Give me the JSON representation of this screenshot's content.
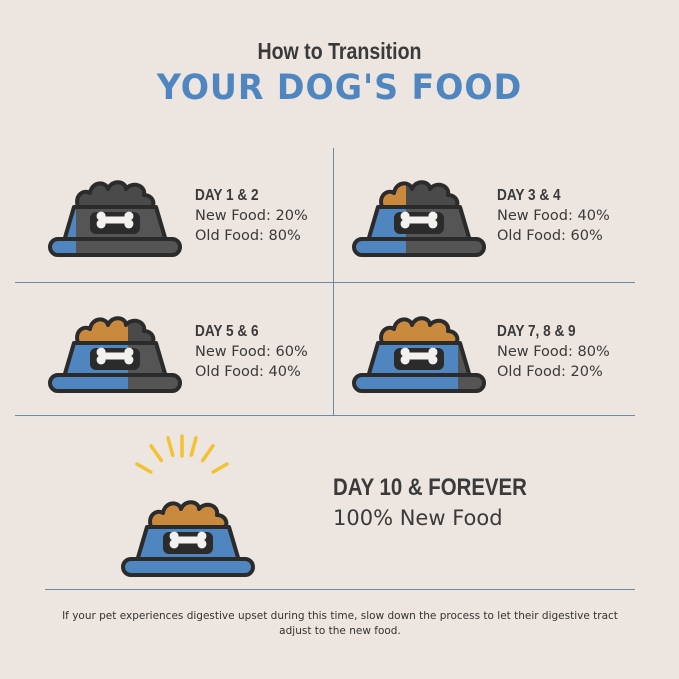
{
  "header": {
    "title_small": "How to Transition",
    "title_large": "YOUR DOG'S FOOD"
  },
  "colors": {
    "background": "#ece5e0",
    "new_food_blue": "#4f86c0",
    "old_food_gray": "#555555",
    "outline": "#2b2b2b",
    "kibble_orange": "#c98a3e",
    "rays_yellow": "#f2c230"
  },
  "steps": [
    {
      "day": "DAY 1 & 2",
      "new": "New Food: 20%",
      "old": "Old Food: 80%",
      "new_fraction": 0.2
    },
    {
      "day": "DAY 3 & 4",
      "new": "New Food: 40%",
      "old": "Old Food: 60%",
      "new_fraction": 0.4
    },
    {
      "day": "DAY 5 & 6",
      "new": "New Food: 60%",
      "old": "Old Food: 40%",
      "new_fraction": 0.6
    },
    {
      "day": "DAY 7, 8 & 9",
      "new": "New Food: 80%",
      "old": "Old Food: 20%",
      "new_fraction": 0.8
    }
  ],
  "final": {
    "day": "DAY 10 & FOREVER",
    "text": "100% New Food",
    "new_fraction": 1.0
  },
  "footnote": "If your pet experiences digestive upset during this time, slow down the process to let their digestive tract adjust to the new food."
}
